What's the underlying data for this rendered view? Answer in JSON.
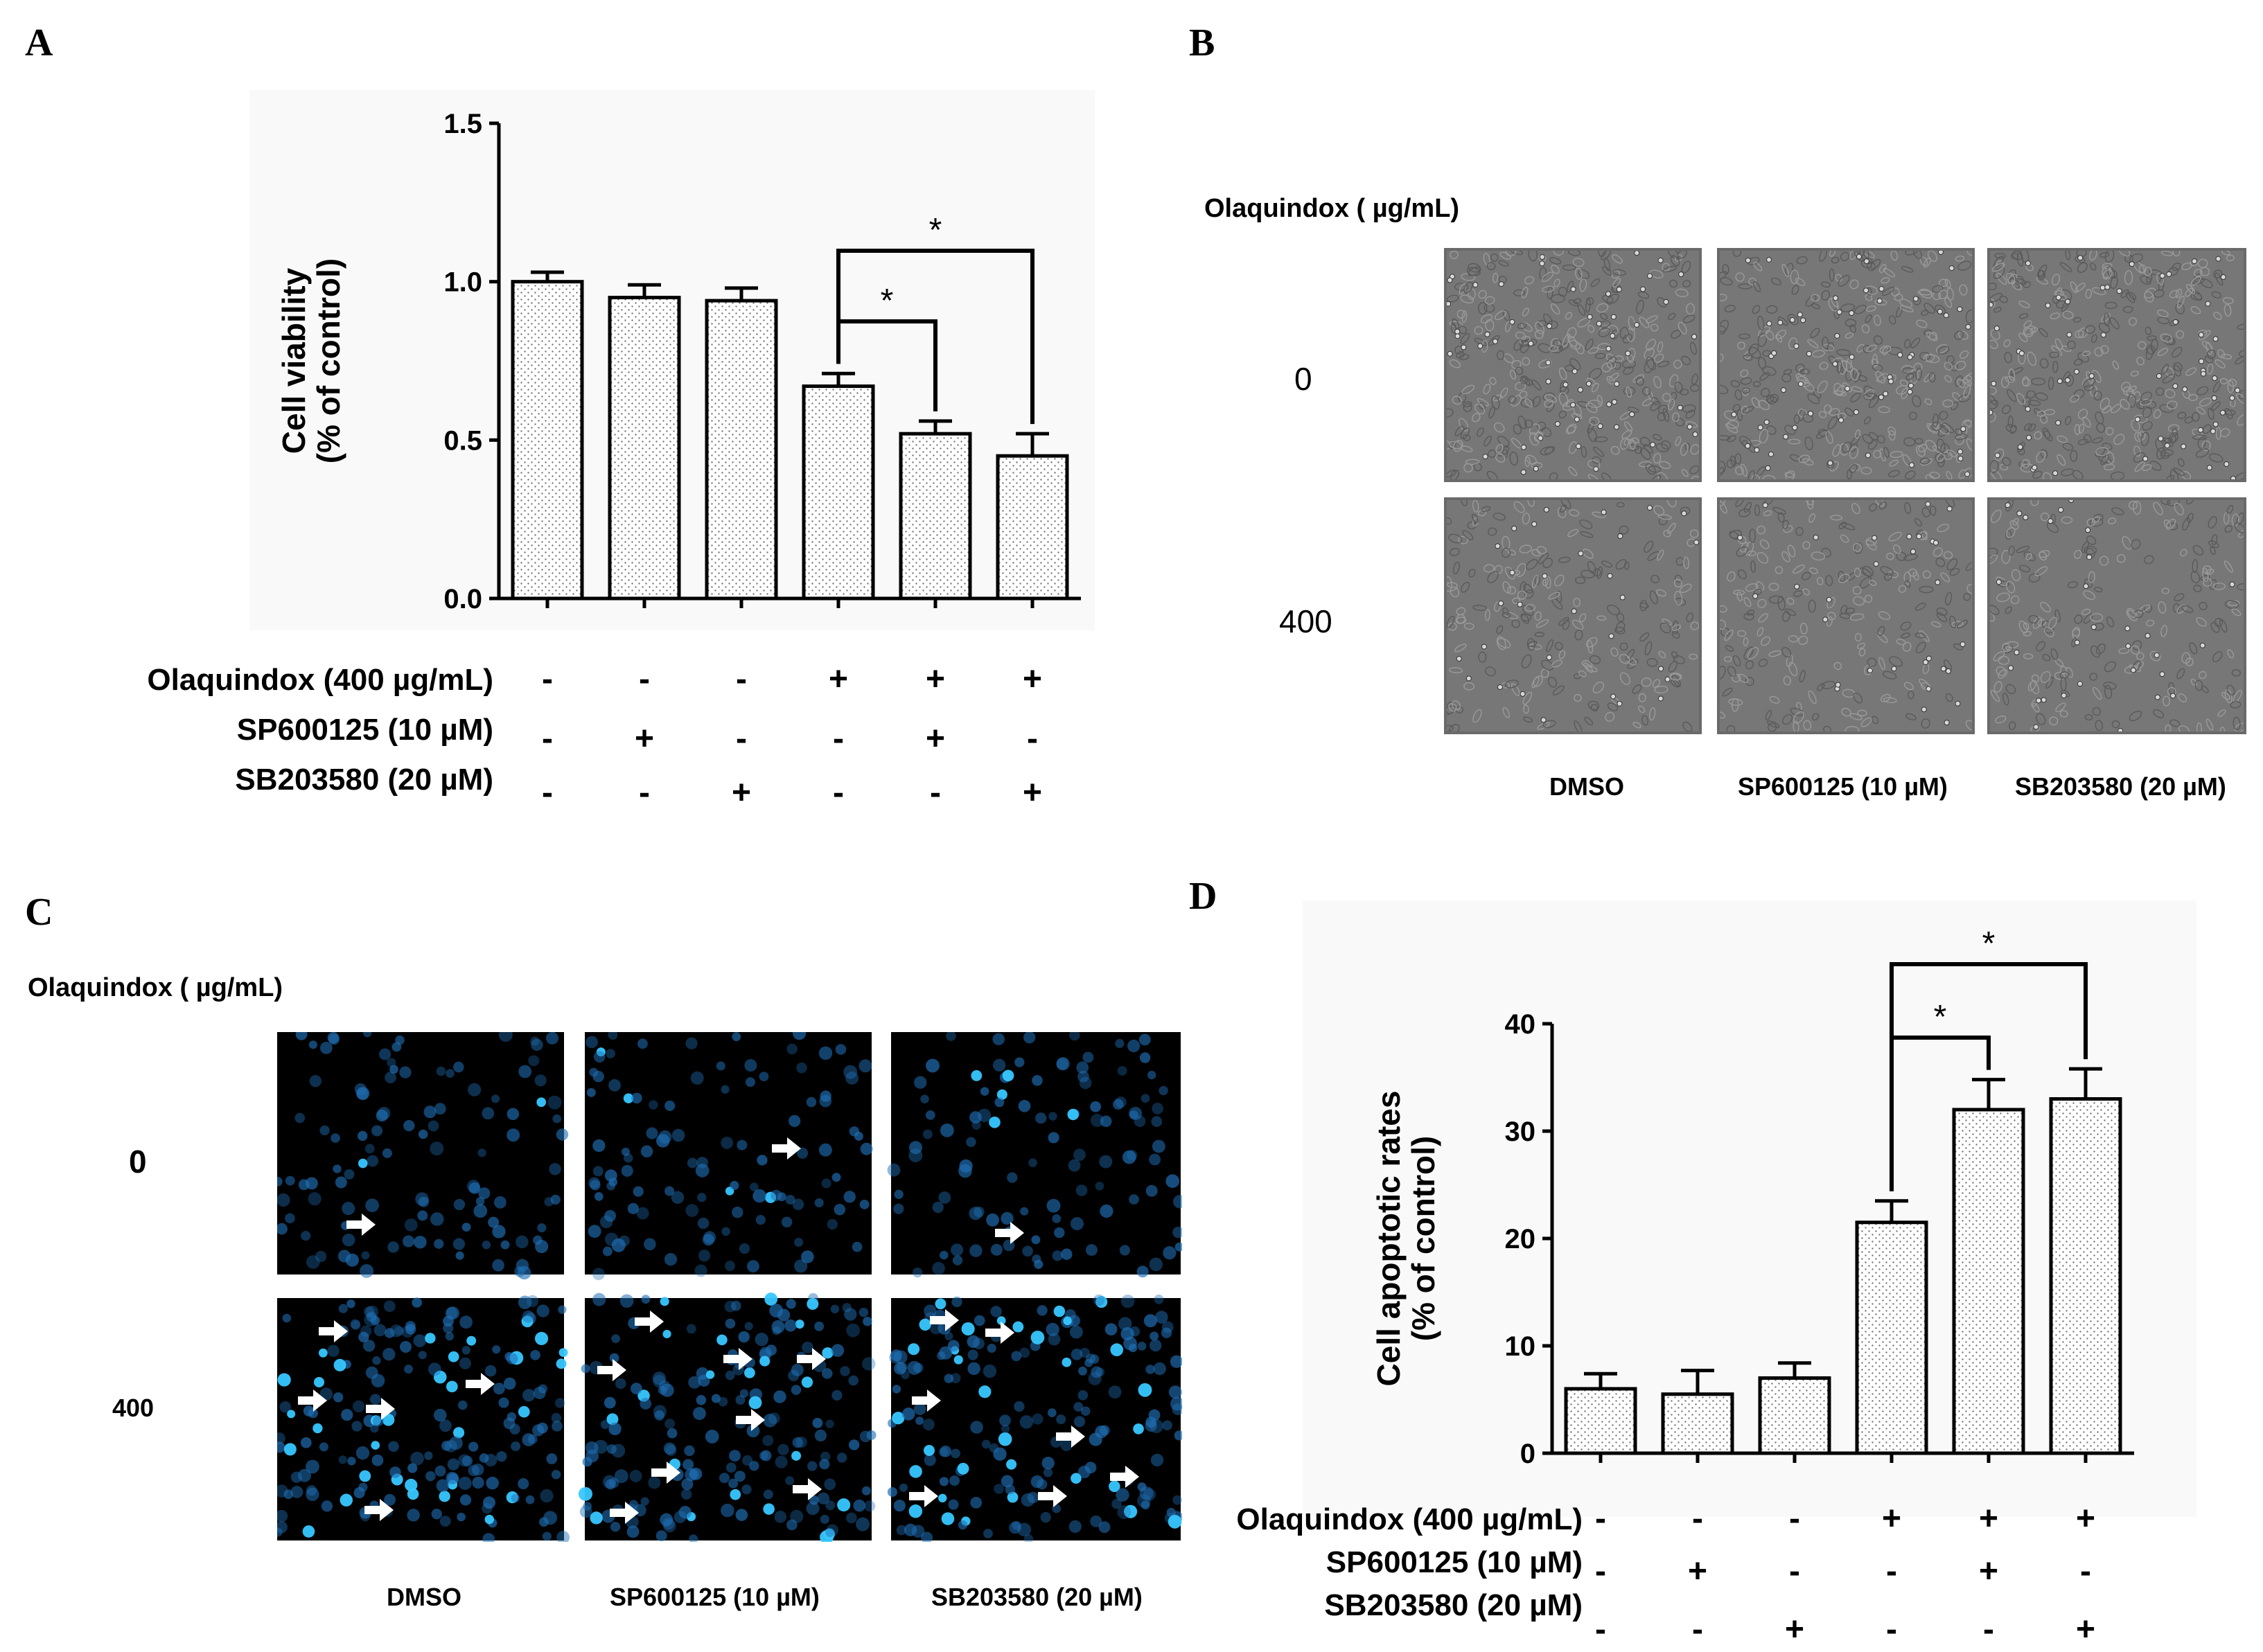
{
  "panels": {
    "a": "A",
    "b": "B",
    "c": "C",
    "d": "D"
  },
  "chart_data": [
    {
      "type": "bar",
      "panel": "A",
      "ylabel": "Cell viability",
      "ylabel2": "(% of control)",
      "ylim": [
        0,
        1.5
      ],
      "yticks": [
        "0.0",
        "0.5",
        "1.0",
        "1.5"
      ],
      "values": [
        1.0,
        0.95,
        0.94,
        0.67,
        0.52,
        0.45
      ],
      "errors": [
        0.03,
        0.04,
        0.04,
        0.04,
        0.04,
        0.07
      ],
      "treatments": [
        {
          "name": "Olaquindox (400 µg/mL)",
          "signs": [
            "-",
            "-",
            "-",
            "+",
            "+",
            "+"
          ]
        },
        {
          "name": "SP600125 (10 µM)",
          "signs": [
            "-",
            "+",
            "-",
            "-",
            "+",
            "-"
          ]
        },
        {
          "name": "SB203580 (20 µM)",
          "signs": [
            "-",
            "-",
            "+",
            "-",
            "-",
            "+"
          ]
        }
      ],
      "significance": [
        {
          "from": 3,
          "to": 4,
          "label": "*"
        },
        {
          "from": 3,
          "to": 5,
          "label": "*"
        }
      ]
    },
    {
      "type": "bar",
      "panel": "D",
      "ylabel": "Cell apoptotic rates",
      "ylabel2": "(% of control)",
      "ylim": [
        0,
        40
      ],
      "yticks": [
        "0",
        "10",
        "20",
        "30",
        "40"
      ],
      "values": [
        6,
        5.5,
        7,
        21.5,
        32,
        33
      ],
      "errors": [
        1.4,
        2.2,
        1.4,
        2.0,
        2.8,
        2.8
      ],
      "treatments": [
        {
          "name": "Olaquindox (400 µg/mL)",
          "signs": [
            "-",
            "-",
            "-",
            "+",
            "+",
            "+"
          ]
        },
        {
          "name": "SP600125 (10 µM)",
          "signs": [
            "-",
            "+",
            "-",
            "-",
            "+",
            "-"
          ]
        },
        {
          "name": "SB203580 (20 µM)",
          "signs": [
            "-",
            "-",
            "+",
            "-",
            "-",
            "+"
          ]
        }
      ],
      "significance": [
        {
          "from": 3,
          "to": 4,
          "label": "*"
        },
        {
          "from": 3,
          "to": 5,
          "label": "*"
        }
      ]
    }
  ],
  "panel_b": {
    "olaquindox_label": "Olaquindox ( µg/mL)",
    "rows": [
      "0",
      "400"
    ],
    "cols": [
      "DMSO",
      "SP600125 (10 µM)",
      "SB203580 (20 µM)"
    ]
  },
  "panel_c": {
    "olaquindox_label": "Olaquindox ( µg/mL)",
    "rows": [
      "0",
      "400"
    ],
    "cols": [
      "DMSO",
      "SP600125 (10 µM)",
      "SB203580 (20 µM)"
    ]
  },
  "colors": {
    "bar_fill": "#ffffff",
    "bar_dots": "#777777",
    "micro_bg": "#7a7a7a",
    "fluor_bg": "#000000",
    "nuclei": "#1f6fb5",
    "bright_nuclei": "#37c7ff"
  }
}
